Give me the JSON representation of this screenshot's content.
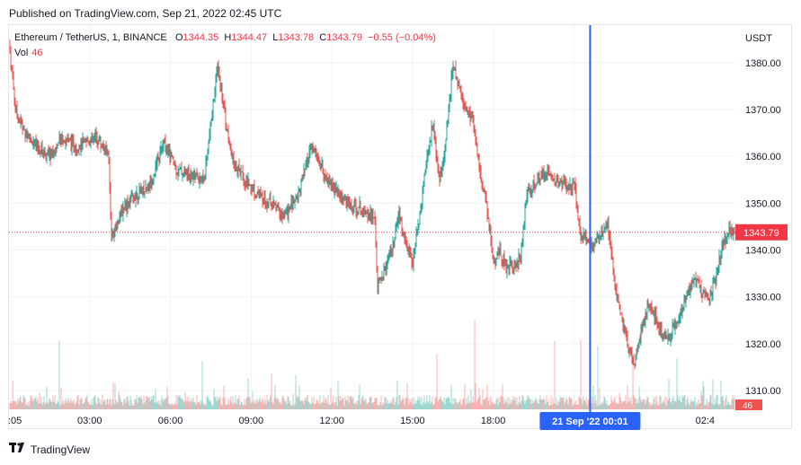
{
  "published": "Published on TradingView.com, Sep 21, 2022 02:45 UTC",
  "legend": {
    "symbol": "Ethereum / TetherUS, 1, BINANCE",
    "o_label": "O",
    "o_value": "1344.35",
    "h_label": "H",
    "h_value": "1344.47",
    "l_label": "L",
    "l_value": "1343.78",
    "c_label": "C",
    "c_value": "1343.79",
    "change": "−0.55 (−0.04%)",
    "vol_label": "Vol",
    "vol_value": "46"
  },
  "currency": "USDT",
  "footer": {
    "brand": "TradingView"
  },
  "colors": {
    "up": "#26a69a",
    "down": "#ef5350",
    "crosshair": "#2962ff",
    "last_price": "#f23645",
    "grid": "#f0f3fa"
  },
  "chart_data": {
    "type": "candlestick",
    "interval": "1 minute",
    "ylim": [
      1306,
      1388
    ],
    "y_ticks": [
      "1380.00",
      "1370.00",
      "1360.00",
      "1350.00",
      "1340.00",
      "1330.00",
      "1320.00",
      "1310.00"
    ],
    "x_ticks": [
      ":05",
      "03:00",
      "06:00",
      "09:00",
      "12:00",
      "15:00",
      "18:00",
      "21:00",
      "02:4"
    ],
    "last_price": 1343.79,
    "last_price_label": "1343.79",
    "last_volume_label": "46",
    "crosshair_label": "21 Sep '22   00:01",
    "price_path": [
      [
        0,
        1384
      ],
      [
        0.5,
        1370
      ],
      [
        1,
        1366
      ],
      [
        2,
        1362
      ],
      [
        3,
        1360
      ],
      [
        4,
        1364
      ],
      [
        5,
        1362
      ],
      [
        6.5,
        1364
      ],
      [
        7.4,
        1360
      ],
      [
        7.6,
        1343
      ],
      [
        8.5,
        1349
      ],
      [
        9.5,
        1352
      ],
      [
        10.5,
        1354
      ],
      [
        11.5,
        1363
      ],
      [
        12.5,
        1357
      ],
      [
        13.5,
        1356
      ],
      [
        14.5,
        1355
      ],
      [
        15.5,
        1379
      ],
      [
        16.5,
        1360
      ],
      [
        17.5,
        1355
      ],
      [
        18.5,
        1352
      ],
      [
        19.5,
        1350
      ],
      [
        20.5,
        1347
      ],
      [
        21.5,
        1352
      ],
      [
        22.5,
        1362
      ],
      [
        23.5,
        1356
      ],
      [
        24.5,
        1352
      ],
      [
        25.5,
        1349
      ],
      [
        26.5,
        1349
      ],
      [
        27.2,
        1346
      ],
      [
        27.4,
        1332
      ],
      [
        28.5,
        1340
      ],
      [
        29,
        1347
      ],
      [
        30,
        1337
      ],
      [
        30.5,
        1347
      ],
      [
        31,
        1358
      ],
      [
        31.5,
        1367
      ],
      [
        32,
        1354
      ],
      [
        32.5,
        1364
      ],
      [
        33,
        1380
      ],
      [
        33.5,
        1374
      ],
      [
        34,
        1370
      ],
      [
        34.5,
        1368
      ],
      [
        35,
        1356
      ],
      [
        35.5,
        1350
      ],
      [
        36,
        1337
      ],
      [
        36.5,
        1340
      ],
      [
        37,
        1336
      ],
      [
        38,
        1338
      ],
      [
        38.5,
        1352
      ],
      [
        39,
        1354
      ],
      [
        40,
        1357
      ],
      [
        41,
        1354
      ],
      [
        42,
        1354
      ],
      [
        42.5,
        1343
      ],
      [
        43.5,
        1341
      ],
      [
        44.5,
        1346
      ],
      [
        45,
        1333
      ],
      [
        45.5,
        1326
      ],
      [
        46,
        1320
      ],
      [
        46.5,
        1316
      ],
      [
        47,
        1323
      ],
      [
        47.5,
        1328
      ],
      [
        48,
        1326
      ],
      [
        48.5,
        1322
      ],
      [
        49,
        1321
      ],
      [
        49.5,
        1324
      ],
      [
        50,
        1327
      ],
      [
        50.5,
        1331
      ],
      [
        51,
        1335
      ],
      [
        51.5,
        1331
      ],
      [
        52,
        1330
      ],
      [
        52.5,
        1333
      ],
      [
        53,
        1341
      ],
      [
        53.5,
        1344
      ],
      [
        54,
        1343.79
      ]
    ]
  }
}
